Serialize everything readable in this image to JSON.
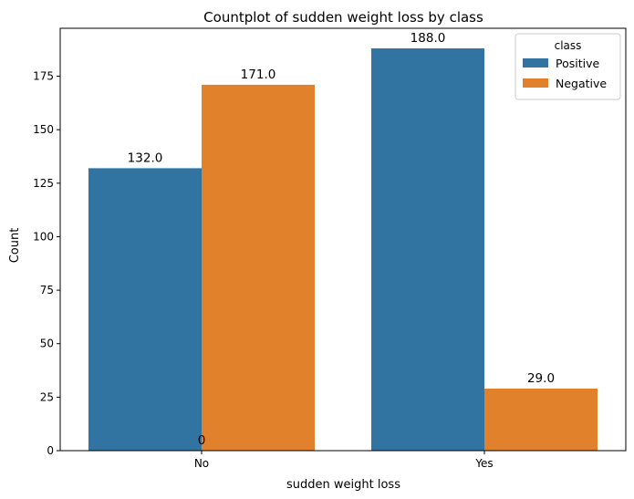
{
  "chart_data": {
    "type": "bar",
    "title": "Countplot of sudden weight loss by class",
    "xlabel": "sudden weight loss",
    "ylabel": "Count",
    "categories": [
      "No",
      "Yes"
    ],
    "series": [
      {
        "name": "Positive",
        "values": [
          132,
          188
        ],
        "color": "#3274a1"
      },
      {
        "name": "Negative",
        "values": [
          171,
          29
        ],
        "color": "#e1812c"
      }
    ],
    "data_labels": [
      [
        "132.0",
        "188.0"
      ],
      [
        "171.0",
        "29.0"
      ]
    ],
    "extra_annotation": "0",
    "ylim": [
      0,
      197.4
    ],
    "yticks": [
      0,
      25,
      50,
      75,
      100,
      125,
      150,
      175
    ],
    "legend": {
      "title": "class",
      "position": "top-right"
    },
    "grid": false
  }
}
